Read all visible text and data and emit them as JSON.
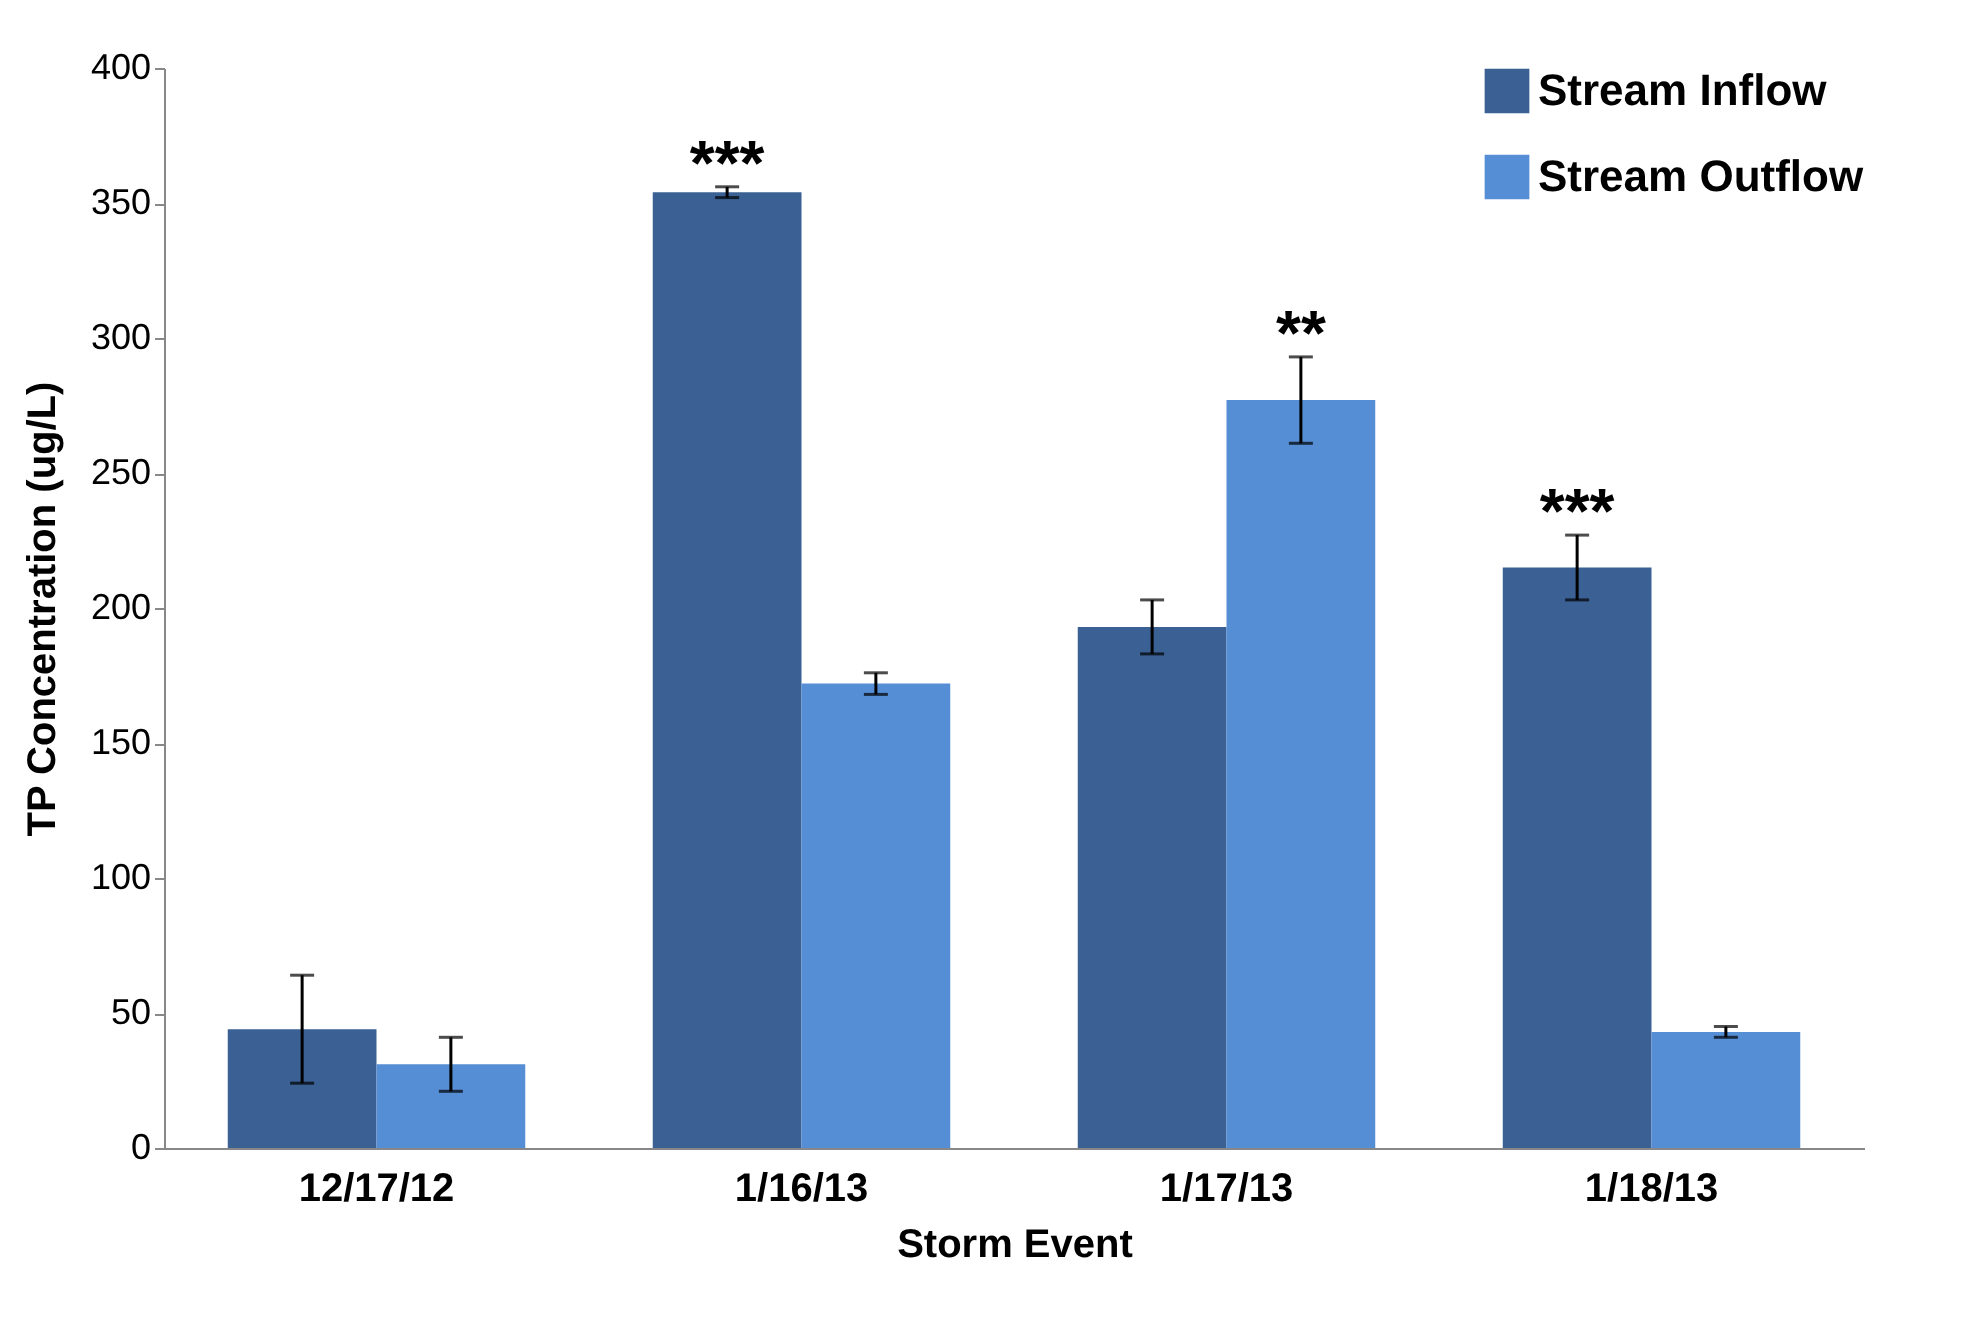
{
  "chart_data": {
    "type": "bar",
    "xlabel": "Storm Event",
    "ylabel": "TP Concentration  (ug/L)",
    "categories": [
      "12/17/12",
      "1/16/13",
      "1/17/13",
      "1/18/13"
    ],
    "series": [
      {
        "name": "Stream Inflow",
        "color": "#3a6094",
        "values": [
          44,
          354,
          193,
          215
        ],
        "errors": [
          20,
          2,
          10,
          12
        ]
      },
      {
        "name": "Stream Outflow",
        "color": "#558ed5",
        "values": [
          31,
          172,
          277,
          43
        ],
        "errors": [
          10,
          4,
          16,
          2
        ]
      }
    ],
    "ylim": [
      0,
      400
    ],
    "yticks": [
      0,
      50,
      100,
      150,
      200,
      250,
      300,
      350,
      400
    ],
    "grid": false,
    "legend": "top right",
    "annotations": [
      {
        "text": "***",
        "x": "1/16/13",
        "y": 354
      },
      {
        "text": "**",
        "x": "1/17/13",
        "y": 277
      },
      {
        "text": "***",
        "x": "1/18/13",
        "y": 215
      }
    ]
  }
}
